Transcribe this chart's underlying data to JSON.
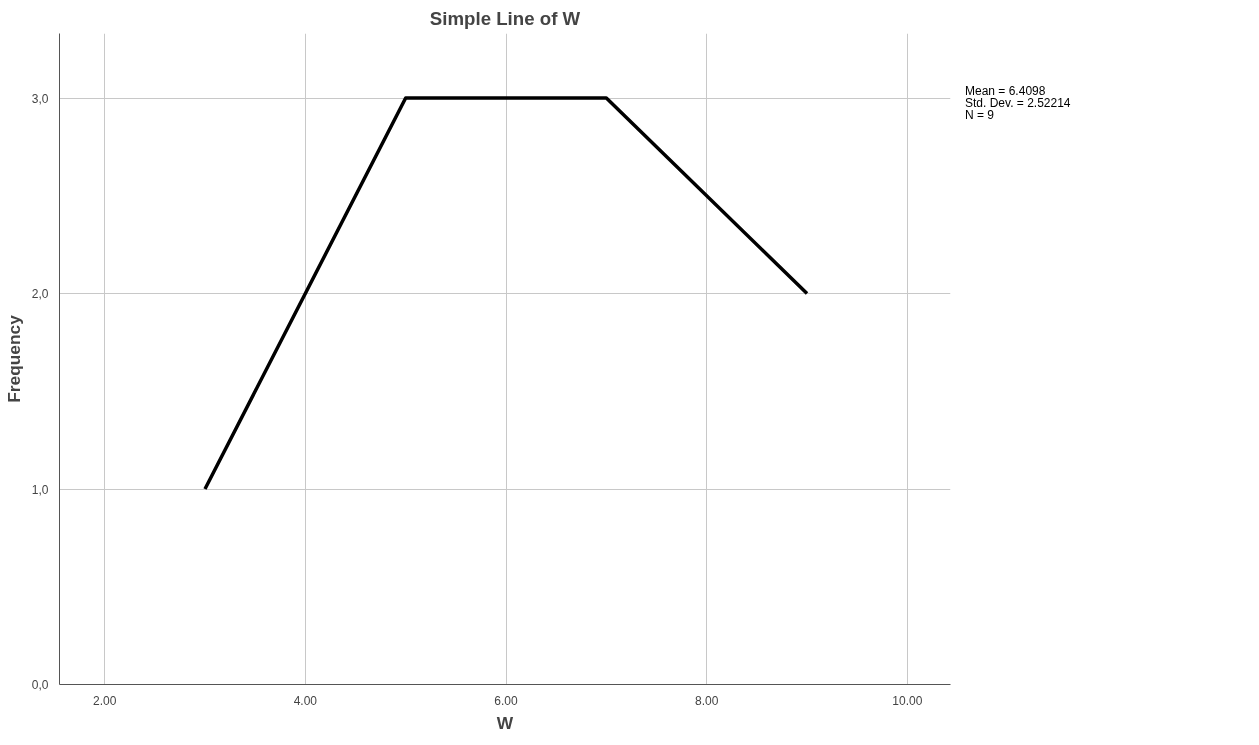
{
  "chart_data": {
    "type": "line",
    "title": "Simple Line of W",
    "xlabel": "W",
    "ylabel": "Frequency",
    "x": [
      3,
      5,
      7,
      9
    ],
    "series": [
      {
        "color": "#000000",
        "values": [
          1,
          3,
          3,
          2
        ]
      }
    ],
    "xlim": [
      1.55,
      10.43
    ],
    "ylim": [
      0,
      3.33
    ],
    "xticks": [
      {
        "value": 2,
        "label": "2.00"
      },
      {
        "value": 4,
        "label": "4.00"
      },
      {
        "value": 6,
        "label": "6.00"
      },
      {
        "value": 8,
        "label": "8.00"
      },
      {
        "value": 10,
        "label": "10.00"
      }
    ],
    "yticks": [
      {
        "value": 0,
        "label": "0,0"
      },
      {
        "value": 1,
        "label": "1,0"
      },
      {
        "value": 2,
        "label": "2,0"
      },
      {
        "value": 3,
        "label": "3,0"
      }
    ],
    "grid": true,
    "marker": "none",
    "line_style": "solid",
    "annotations": [
      "Mean = 6.4098",
      "Std. Dev. = 2.52214",
      "N = 9"
    ]
  }
}
